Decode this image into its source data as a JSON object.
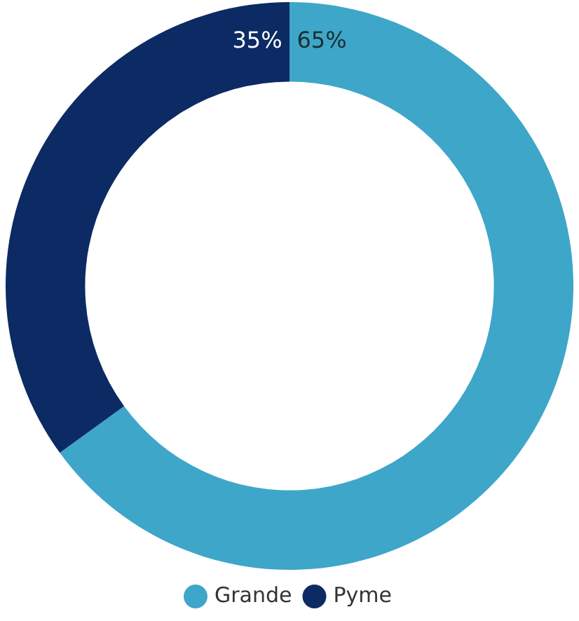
{
  "chart_data": {
    "type": "donut",
    "categories": [
      "Grande",
      "Pyme"
    ],
    "values": [
      65,
      35
    ],
    "colors": [
      "#3ea6c9",
      "#0c2a63"
    ],
    "value_labels": [
      "65%",
      "35%"
    ],
    "legend": "bottom"
  }
}
